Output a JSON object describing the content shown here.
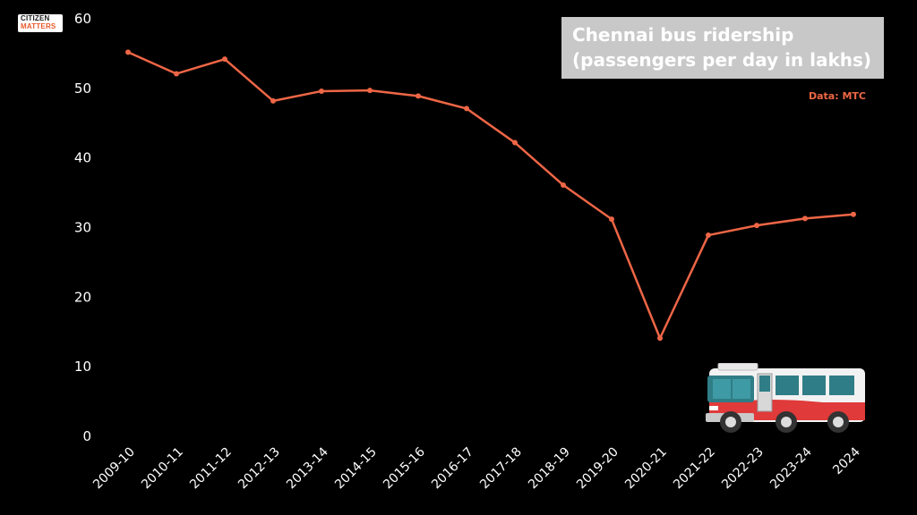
{
  "logo": {
    "line1": "CITIZEN",
    "line2": "MATTERS"
  },
  "title_line1": "Chennai bus ridership",
  "title_line2": "(passengers per day in lakhs)",
  "source": "Data: MTC",
  "colors": {
    "line": "#ee6646",
    "background": "#000000",
    "title_box": "#c8c8c8"
  },
  "chart_data": {
    "type": "line",
    "title": "Chennai bus ridership (passengers per day in lakhs)",
    "categories": [
      "2009-10",
      "2010-11",
      "2011-12",
      "2012-13",
      "2013-14",
      "2014-15",
      "2015-16",
      "2016-17",
      "2017-18",
      "2018-19",
      "2019-20",
      "2020-21",
      "2021-22",
      "2022-23",
      "2023-24",
      "2024"
    ],
    "values": [
      55.2,
      52.1,
      54.2,
      48.2,
      49.6,
      49.7,
      48.9,
      47.1,
      42.2,
      36.1,
      31.2,
      14.1,
      28.9,
      30.3,
      31.3,
      31.9
    ],
    "ylim": [
      0,
      60
    ],
    "yticks": [
      "0",
      "10",
      "20",
      "30",
      "40",
      "50",
      "60"
    ],
    "xlabel": "",
    "ylabel": "",
    "grid": false,
    "legend": "none"
  },
  "illustration": {
    "icon": "bus-icon"
  }
}
